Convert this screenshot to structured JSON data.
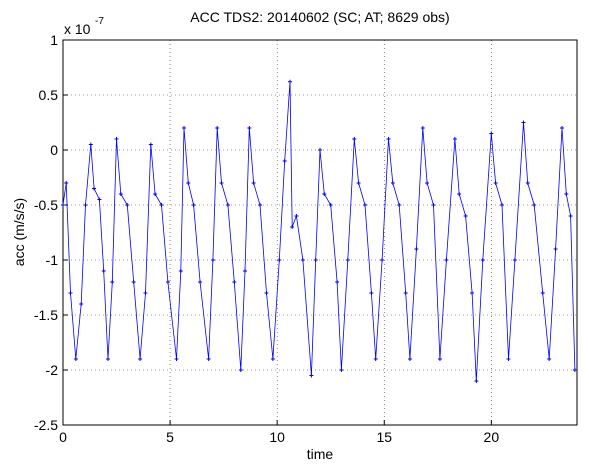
{
  "chart_data": {
    "type": "line",
    "title": "ACC TDS2: 20140602 (SC; AT; 8629 obs)",
    "x_label": "time",
    "y_label": "acc (m/s/s)",
    "y_multiplier_base": "x 10",
    "y_multiplier_exponent": "-7",
    "xlim": [
      0,
      24
    ],
    "ylim": [
      -2.5,
      1
    ],
    "xticks": [
      0,
      5,
      10,
      15,
      20
    ],
    "yticks": [
      -2.5,
      -2,
      -1.5,
      -1,
      -0.5,
      0,
      0.5,
      1
    ],
    "grid": true,
    "series": [
      {
        "name": "acc",
        "color": "#0000ff",
        "x": [
          0,
          0.15,
          0.35,
          0.6,
          0.85,
          1.05,
          1.3,
          1.45,
          1.7,
          1.9,
          2.1,
          2.3,
          2.5,
          2.7,
          3.0,
          3.3,
          3.6,
          3.85,
          4.1,
          4.3,
          4.6,
          4.9,
          5.3,
          5.5,
          5.65,
          5.85,
          6.1,
          6.4,
          6.8,
          7.0,
          7.2,
          7.4,
          7.7,
          8.0,
          8.3,
          8.5,
          8.7,
          8.9,
          9.2,
          9.5,
          9.8,
          10.1,
          10.35,
          10.6,
          10.7,
          10.9,
          11.2,
          11.6,
          11.8,
          12.0,
          12.2,
          12.5,
          12.8,
          13.0,
          13.3,
          13.6,
          13.8,
          14.1,
          14.4,
          14.6,
          14.9,
          15.2,
          15.4,
          15.7,
          16.0,
          16.2,
          16.5,
          16.8,
          17.0,
          17.3,
          17.6,
          17.9,
          18.3,
          18.5,
          18.8,
          19.1,
          19.3,
          19.6,
          20.0,
          20.2,
          20.5,
          20.8,
          21.1,
          21.5,
          21.7,
          22.0,
          22.4,
          22.7,
          23.0,
          23.3,
          23.5,
          23.7,
          23.9
        ],
        "values": [
          -0.5,
          -0.3,
          -1.3,
          -1.9,
          -1.4,
          -0.5,
          0.05,
          -0.35,
          -0.45,
          -1.1,
          -1.9,
          -1.2,
          0.1,
          -0.4,
          -0.5,
          -1.2,
          -1.9,
          -1.3,
          0.05,
          -0.4,
          -0.5,
          -1.2,
          -1.9,
          -1.1,
          0.2,
          -0.3,
          -0.5,
          -1.2,
          -1.9,
          -1.0,
          0.2,
          -0.3,
          -0.5,
          -1.2,
          -2.0,
          -1.1,
          0.2,
          -0.3,
          -0.5,
          -1.3,
          -1.9,
          -1.0,
          -0.1,
          0.62,
          -0.7,
          -0.6,
          -1.0,
          -2.05,
          -1.0,
          0.0,
          -0.4,
          -0.5,
          -1.2,
          -2.0,
          -1.0,
          0.1,
          -0.3,
          -0.5,
          -1.3,
          -1.9,
          -1.0,
          0.1,
          -0.3,
          -0.5,
          -1.3,
          -1.9,
          -0.9,
          0.2,
          -0.3,
          -0.5,
          -1.9,
          -1.0,
          0.1,
          -0.4,
          -0.6,
          -1.3,
          -2.1,
          -1.0,
          0.15,
          -0.3,
          -0.5,
          -1.9,
          -1.0,
          0.25,
          -0.3,
          -0.5,
          -1.3,
          -1.9,
          -0.9,
          0.2,
          -0.4,
          -0.6,
          -2.0
        ]
      }
    ]
  }
}
